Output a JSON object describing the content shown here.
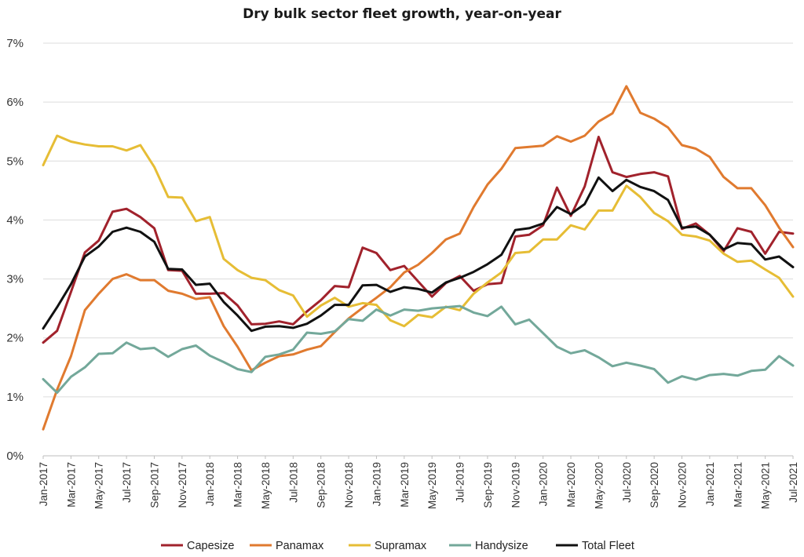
{
  "chart_data": {
    "type": "line",
    "title": "Dry bulk sector fleet growth, year-on-year",
    "xlabel": "",
    "ylabel": "",
    "ylim": [
      0,
      7
    ],
    "y_ticks": [
      "0%",
      "1%",
      "2%",
      "3%",
      "4%",
      "5%",
      "6%",
      "7%"
    ],
    "grid": "horizontal",
    "legend_position": "bottom",
    "x": [
      "Jan-2017",
      "Feb-2017",
      "Mar-2017",
      "Apr-2017",
      "May-2017",
      "Jun-2017",
      "Jul-2017",
      "Aug-2017",
      "Sep-2017",
      "Oct-2017",
      "Nov-2017",
      "Dec-2017",
      "Jan-2018",
      "Feb-2018",
      "Mar-2018",
      "Apr-2018",
      "May-2018",
      "Jun-2018",
      "Jul-2018",
      "Aug-2018",
      "Sep-2018",
      "Oct-2018",
      "Nov-2018",
      "Dec-2018",
      "Jan-2019",
      "Feb-2019",
      "Mar-2019",
      "Apr-2019",
      "May-2019",
      "Jun-2019",
      "Jul-2019",
      "Aug-2019",
      "Sep-2019",
      "Oct-2019",
      "Nov-2019",
      "Dec-2019",
      "Jan-2020",
      "Feb-2020",
      "Mar-2020",
      "Apr-2020",
      "May-2020",
      "Jun-2020",
      "Jul-2020",
      "Aug-2020",
      "Sep-2020",
      "Oct-2020",
      "Nov-2020",
      "Dec-2020",
      "Jan-2021",
      "Feb-2021",
      "Mar-2021",
      "Apr-2021",
      "May-2021",
      "Jun-2021",
      "Jul-2021"
    ],
    "x_tick_labels": [
      "Jan-2017",
      "Mar-2017",
      "May-2017",
      "Jul-2017",
      "Sep-2017",
      "Nov-2017",
      "Jan-2018",
      "Mar-2018",
      "May-2018",
      "Jul-2018",
      "Sep-2018",
      "Nov-2018",
      "Jan-2019",
      "Mar-2019",
      "May-2019",
      "Jul-2019",
      "Sep-2019",
      "Nov-2019",
      "Jan-2020",
      "Mar-2020",
      "May-2020",
      "Jul-2020",
      "Sep-2020",
      "Nov-2020",
      "Jan-2021",
      "Mar-2021",
      "May-2021",
      "Jul-2021"
    ],
    "series": [
      {
        "name": "Capesize",
        "color": "#a1222c",
        "values": [
          1.92,
          2.12,
          2.78,
          3.45,
          3.65,
          4.14,
          4.19,
          4.05,
          3.86,
          3.15,
          3.14,
          2.75,
          2.75,
          2.76,
          2.55,
          2.23,
          2.24,
          2.28,
          2.23,
          2.45,
          2.64,
          2.88,
          2.86,
          3.53,
          3.44,
          3.15,
          3.22,
          2.96,
          2.7,
          2.93,
          3.05,
          2.8,
          2.91,
          2.93,
          3.72,
          3.75,
          3.91,
          4.55,
          4.07,
          4.57,
          5.41,
          4.81,
          4.73,
          4.78,
          4.81,
          4.74,
          3.85,
          3.94,
          3.75,
          3.47,
          3.86,
          3.8,
          3.43,
          3.8,
          3.77
        ]
      },
      {
        "name": "Panamax",
        "color": "#e07a2f",
        "values": [
          0.45,
          1.12,
          1.69,
          2.47,
          2.75,
          3.0,
          3.08,
          2.98,
          2.98,
          2.8,
          2.75,
          2.66,
          2.69,
          2.2,
          1.85,
          1.45,
          1.58,
          1.69,
          1.72,
          1.8,
          1.86,
          2.1,
          2.33,
          2.51,
          2.68,
          2.86,
          3.11,
          3.24,
          3.44,
          3.67,
          3.77,
          4.22,
          4.6,
          4.87,
          5.22,
          5.24,
          5.26,
          5.42,
          5.33,
          5.43,
          5.67,
          5.81,
          6.27,
          5.82,
          5.72,
          5.57,
          5.27,
          5.21,
          5.07,
          4.73,
          4.54,
          4.54,
          4.25,
          3.87,
          3.54
        ]
      },
      {
        "name": "Supramax",
        "color": "#e6bd35",
        "values": [
          4.93,
          5.43,
          5.33,
          5.28,
          5.25,
          5.25,
          5.18,
          5.27,
          4.9,
          4.39,
          4.38,
          3.98,
          4.05,
          3.34,
          3.15,
          3.02,
          2.98,
          2.81,
          2.72,
          2.36,
          2.55,
          2.68,
          2.53,
          2.59,
          2.56,
          2.3,
          2.2,
          2.39,
          2.35,
          2.53,
          2.47,
          2.75,
          2.94,
          3.11,
          3.44,
          3.46,
          3.67,
          3.67,
          3.91,
          3.84,
          4.16,
          4.16,
          4.58,
          4.39,
          4.12,
          3.98,
          3.75,
          3.72,
          3.65,
          3.43,
          3.29,
          3.31,
          3.16,
          3.02,
          2.7
        ]
      },
      {
        "name": "Handysize",
        "color": "#73a89a",
        "values": [
          1.3,
          1.07,
          1.34,
          1.5,
          1.73,
          1.74,
          1.92,
          1.81,
          1.83,
          1.68,
          1.81,
          1.87,
          1.7,
          1.59,
          1.47,
          1.42,
          1.68,
          1.72,
          1.8,
          2.09,
          2.07,
          2.11,
          2.32,
          2.29,
          2.48,
          2.38,
          2.48,
          2.46,
          2.5,
          2.52,
          2.54,
          2.43,
          2.37,
          2.53,
          2.23,
          2.31,
          2.08,
          1.85,
          1.74,
          1.79,
          1.67,
          1.52,
          1.58,
          1.53,
          1.47,
          1.24,
          1.35,
          1.29,
          1.37,
          1.39,
          1.36,
          1.44,
          1.46,
          1.69,
          1.53
        ]
      },
      {
        "name": "Total Fleet",
        "color": "#111111",
        "values": [
          2.16,
          2.52,
          2.91,
          3.38,
          3.55,
          3.8,
          3.87,
          3.8,
          3.63,
          3.17,
          3.16,
          2.9,
          2.92,
          2.61,
          2.38,
          2.12,
          2.19,
          2.2,
          2.17,
          2.24,
          2.38,
          2.56,
          2.56,
          2.89,
          2.9,
          2.78,
          2.86,
          2.83,
          2.77,
          2.94,
          3.02,
          3.12,
          3.25,
          3.41,
          3.83,
          3.86,
          3.94,
          4.22,
          4.1,
          4.27,
          4.72,
          4.49,
          4.68,
          4.56,
          4.49,
          4.34,
          3.87,
          3.89,
          3.75,
          3.5,
          3.61,
          3.59,
          3.33,
          3.38,
          3.2
        ]
      }
    ]
  }
}
